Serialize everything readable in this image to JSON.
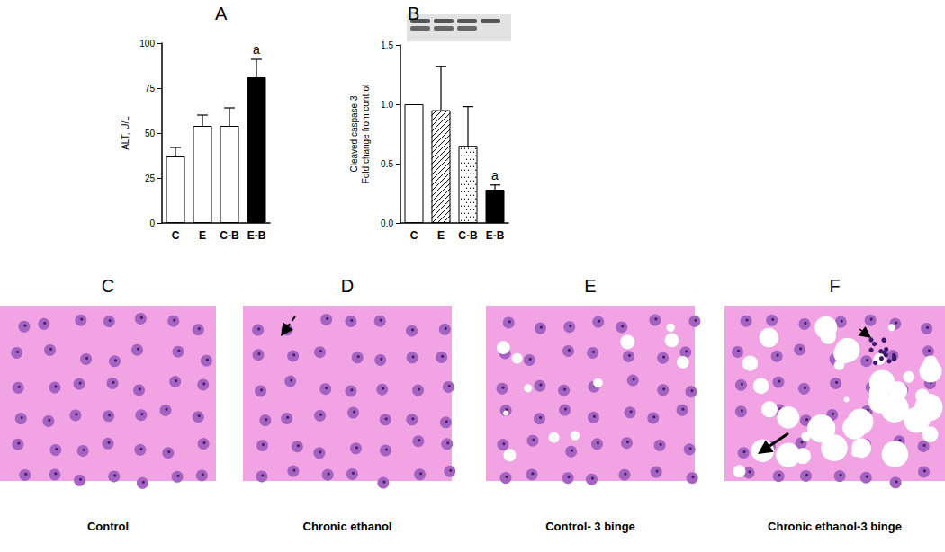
{
  "chart_data": [
    {
      "type": "bar",
      "title": "A",
      "ylabel": "ALT, U/L",
      "categories": [
        "C",
        "E",
        "C-B",
        "E-B"
      ],
      "values": [
        37,
        54,
        54,
        81
      ],
      "errors": [
        5,
        6,
        10,
        10
      ],
      "colors": [
        "#ffffff",
        "#ffffff",
        "#ffffff",
        "#000000"
      ],
      "ylim": [
        0,
        100
      ],
      "yticks": [
        0,
        25,
        50,
        75,
        100
      ],
      "grid": false,
      "annotations": [
        {
          "category": "E-B",
          "text": "a"
        }
      ]
    },
    {
      "type": "bar",
      "title": "B",
      "ylabel": "Cleaved caspase 3\nFold change from control",
      "categories": [
        "C",
        "E",
        "C-B",
        "E-B"
      ],
      "values": [
        1.0,
        0.95,
        0.65,
        0.28
      ],
      "errors": [
        0,
        0.37,
        0.33,
        0.04
      ],
      "colors": [
        "#ffffff",
        "#ffffff",
        "#ffffff",
        "#000000"
      ],
      "ylim": [
        0,
        1.5
      ],
      "yticks": [
        {
          "value": 0,
          "label": "0.0"
        },
        {
          "value": 0.5,
          "label": "0.5"
        },
        {
          "value": 1,
          "label": "1.0"
        },
        {
          "value": 1.5,
          "label": "1.5"
        }
      ],
      "grid": false,
      "annotations": [
        {
          "category": "E-B",
          "text": "a"
        }
      ]
    }
  ],
  "panels": [
    {
      "letter": "C",
      "caption": "Control"
    },
    {
      "letter": "D",
      "caption": "Chronic ethanol"
    },
    {
      "letter": "E",
      "caption": "Control- 3 binge"
    },
    {
      "letter": "F",
      "caption": "Chronic ethanol-3 binge"
    }
  ]
}
